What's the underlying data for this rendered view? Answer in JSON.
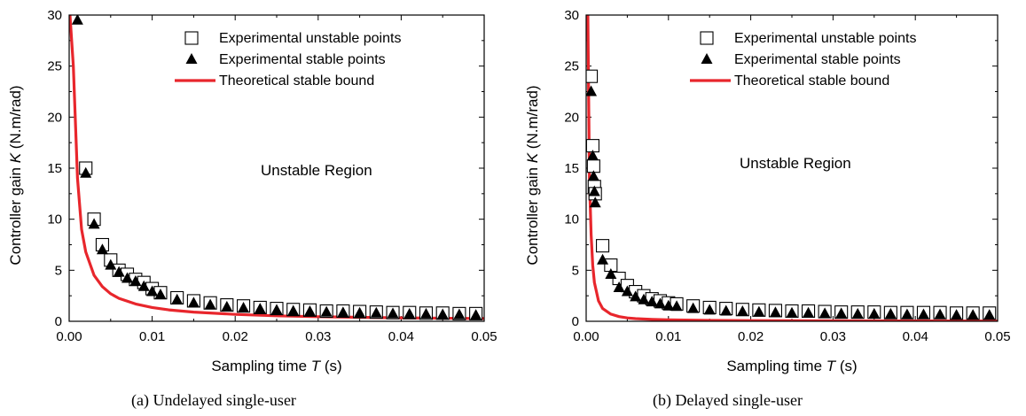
{
  "chart_data": [
    {
      "type": "scatter",
      "caption": "(a)  Undelayed single-user",
      "xlabel": "Sampling time T (s)",
      "ylabel": "Controller gain K (N.m/rad)",
      "xlim": [
        0,
        0.05
      ],
      "ylim": [
        0,
        30
      ],
      "xticks": [
        "0.00",
        "0.01",
        "0.02",
        "0.03",
        "0.04",
        "0.05"
      ],
      "yticks": [
        "0",
        "5",
        "10",
        "15",
        "20",
        "25",
        "30"
      ],
      "annotation": "Unstable Region",
      "legend_position": "top-right",
      "series": [
        {
          "name": "Experimental unstable points",
          "marker": "open-square",
          "x": [
            0.002,
            0.003,
            0.004,
            0.005,
            0.006,
            0.007,
            0.008,
            0.009,
            0.01,
            0.011,
            0.013,
            0.015,
            0.017,
            0.019,
            0.021,
            0.023,
            0.025,
            0.027,
            0.029,
            0.031,
            0.033,
            0.035,
            0.037,
            0.039,
            0.041,
            0.043,
            0.045,
            0.047,
            0.049
          ],
          "y": [
            15.0,
            10.0,
            7.5,
            6.0,
            5.0,
            4.6,
            4.1,
            3.8,
            3.2,
            2.8,
            2.3,
            2.0,
            1.8,
            1.6,
            1.5,
            1.35,
            1.25,
            1.15,
            1.1,
            1.0,
            1.0,
            0.95,
            0.9,
            0.85,
            0.85,
            0.8,
            0.8,
            0.75,
            0.75
          ]
        },
        {
          "name": "Experimental stable points",
          "marker": "filled-triangle",
          "x": [
            0.001,
            0.002,
            0.003,
            0.004,
            0.005,
            0.006,
            0.007,
            0.008,
            0.009,
            0.01,
            0.011,
            0.013,
            0.015,
            0.017,
            0.019,
            0.021,
            0.023,
            0.025,
            0.027,
            0.029,
            0.031,
            0.033,
            0.035,
            0.037,
            0.039,
            0.041,
            0.043,
            0.045,
            0.047,
            0.049
          ],
          "y": [
            29.5,
            14.5,
            9.5,
            7.0,
            5.5,
            4.8,
            4.2,
            3.9,
            3.4,
            2.9,
            2.6,
            2.1,
            1.8,
            1.6,
            1.4,
            1.3,
            1.2,
            1.1,
            1.0,
            0.95,
            0.9,
            0.85,
            0.8,
            0.8,
            0.75,
            0.7,
            0.7,
            0.65,
            0.65,
            0.6
          ]
        },
        {
          "name": "Theoretical stable bound",
          "marker": "line",
          "color": "#e8262c",
          "x": [
            0.0001,
            0.0005,
            0.001,
            0.0015,
            0.002,
            0.003,
            0.004,
            0.005,
            0.006,
            0.008,
            0.01,
            0.012,
            0.015,
            0.02,
            0.025,
            0.03,
            0.035,
            0.04,
            0.045,
            0.05
          ],
          "y": [
            30.0,
            25.0,
            14.0,
            9.0,
            6.8,
            4.5,
            3.4,
            2.7,
            2.25,
            1.7,
            1.35,
            1.12,
            0.9,
            0.68,
            0.54,
            0.45,
            0.39,
            0.34,
            0.3,
            0.27
          ]
        }
      ]
    },
    {
      "type": "scatter",
      "caption": "(b)  Delayed single-user",
      "xlabel": "Sampling time T (s)",
      "ylabel": "Controller gain K (N.m/rad)",
      "xlim": [
        0,
        0.05
      ],
      "ylim": [
        0,
        30
      ],
      "xticks": [
        "0.00",
        "0.01",
        "0.02",
        "0.03",
        "0.04",
        "0.05"
      ],
      "yticks": [
        "0",
        "5",
        "10",
        "15",
        "20",
        "25",
        "30"
      ],
      "annotation": "Unstable Region",
      "legend_position": "top-right",
      "series": [
        {
          "name": "Experimental unstable points",
          "marker": "open-square",
          "x": [
            0.0006,
            0.0008,
            0.0009,
            0.001,
            0.0011,
            0.002,
            0.003,
            0.004,
            0.005,
            0.006,
            0.007,
            0.008,
            0.009,
            0.01,
            0.011,
            0.013,
            0.015,
            0.017,
            0.019,
            0.021,
            0.023,
            0.025,
            0.027,
            0.029,
            0.031,
            0.033,
            0.035,
            0.037,
            0.039,
            0.041,
            0.043,
            0.045,
            0.047,
            0.049
          ],
          "y": [
            24.0,
            17.2,
            15.2,
            13.2,
            12.5,
            7.4,
            5.5,
            4.2,
            3.5,
            2.9,
            2.5,
            2.2,
            2.0,
            1.8,
            1.7,
            1.5,
            1.35,
            1.25,
            1.15,
            1.1,
            1.05,
            1.0,
            1.0,
            0.95,
            0.9,
            0.9,
            0.9,
            0.85,
            0.85,
            0.85,
            0.85,
            0.8,
            0.8,
            0.8
          ]
        },
        {
          "name": "Experimental stable points",
          "marker": "filled-triangle",
          "x": [
            0.0006,
            0.0008,
            0.0009,
            0.001,
            0.0011,
            0.002,
            0.003,
            0.004,
            0.005,
            0.006,
            0.007,
            0.008,
            0.009,
            0.01,
            0.011,
            0.013,
            0.015,
            0.017,
            0.019,
            0.021,
            0.023,
            0.025,
            0.027,
            0.029,
            0.031,
            0.033,
            0.035,
            0.037,
            0.039,
            0.041,
            0.043,
            0.045,
            0.047,
            0.049
          ],
          "y": [
            22.5,
            16.2,
            14.2,
            12.7,
            11.6,
            6.0,
            4.6,
            3.3,
            2.9,
            2.4,
            2.1,
            1.9,
            1.7,
            1.5,
            1.45,
            1.25,
            1.1,
            1.0,
            0.95,
            0.9,
            0.85,
            0.8,
            0.8,
            0.75,
            0.75,
            0.7,
            0.7,
            0.7,
            0.65,
            0.65,
            0.65,
            0.6,
            0.6,
            0.6
          ]
        },
        {
          "name": "Theoretical stable bound",
          "marker": "line",
          "color": "#e8262c",
          "x": [
            0.0002,
            0.0004,
            0.0006,
            0.0008,
            0.001,
            0.0015,
            0.002,
            0.003,
            0.004,
            0.005,
            0.006,
            0.008,
            0.01,
            0.015,
            0.02,
            0.025,
            0.03,
            0.04,
            0.05
          ],
          "y": [
            30.0,
            14.0,
            8.5,
            5.5,
            3.8,
            2.0,
            1.25,
            0.7,
            0.46,
            0.33,
            0.26,
            0.18,
            0.14,
            0.09,
            0.07,
            0.055,
            0.045,
            0.035,
            0.03
          ]
        }
      ]
    }
  ]
}
